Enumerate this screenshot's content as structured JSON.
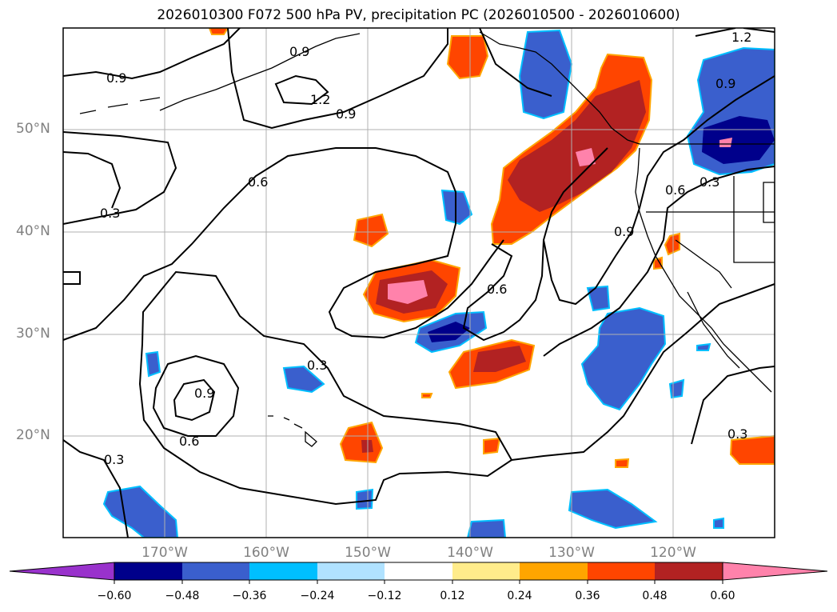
{
  "title": "2026010300 F072 500 hPa PV, precipitation PC (2026010500 - 2026010600)",
  "map": {
    "lat_labels": [
      "50°N",
      "40°N",
      "30°N",
      "20°N"
    ],
    "lon_labels": [
      "170°W",
      "160°W",
      "150°W",
      "140°W",
      "130°W",
      "120°W"
    ],
    "contour_labels": [
      "0.9",
      "0.9",
      "1.2",
      "1.2",
      "0.9",
      "0.9",
      "0.6",
      "0.3",
      "0.6",
      "0.9",
      "0.6",
      "0.3",
      "0.3",
      "0.9",
      "0.6",
      "0.3",
      "0.3"
    ],
    "colors": {
      "neg_060": "#00008b",
      "neg_048": "#3a5fcd",
      "neg_036": "#00bfff",
      "neg_024": "#b0e2ff",
      "pos_024": "#ffec8b",
      "pos_036": "#ffa500",
      "pos_048": "#ff4500",
      "pos_060": "#b22222",
      "pos_max": "#ff82ab",
      "below_min": "#9932cc"
    }
  },
  "colorbar": {
    "ticks": [
      "−0.60",
      "−0.48",
      "−0.36",
      "−0.24",
      "−0.12",
      "0.12",
      "0.24",
      "0.36",
      "0.48",
      "0.60"
    ],
    "segments": [
      "#00008b",
      "#3a5fcd",
      "#00bfff",
      "#b0e2ff",
      "#ffffff",
      "#ffec8b",
      "#ffa500",
      "#ff4500",
      "#b22222"
    ],
    "extend_min_color": "#9932cc",
    "extend_max_color": "#ff82ab"
  }
}
